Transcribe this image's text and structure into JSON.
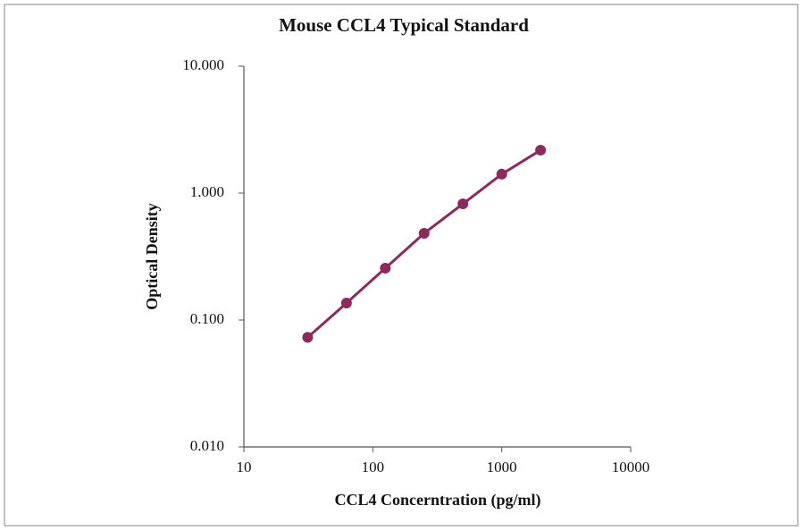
{
  "chart_data": {
    "type": "line",
    "title": "Mouse CCL4 Typical Standard",
    "x_label": "CCL4 Concerntration (pg/ml)",
    "y_label": "Optical Density",
    "x": [
      31.25,
      62.5,
      125,
      250,
      500,
      1000,
      2000
    ],
    "series": [
      {
        "color": "#8c2a5c",
        "values": [
          0.073,
          0.136,
          0.256,
          0.482,
          0.823,
          1.41,
          2.18
        ]
      }
    ],
    "xlim": [
      10,
      10000
    ],
    "xticks": [
      10,
      100,
      1000,
      10000
    ],
    "ylim": [
      0.01,
      10
    ],
    "yticks": [
      {
        "value": 0.01,
        "label": "0.010"
      },
      {
        "value": 0.1,
        "label": "0.100"
      },
      {
        "value": 1,
        "label": "1.000"
      },
      {
        "value": 10,
        "label": "10.000"
      }
    ],
    "x_log": true,
    "y_log": true,
    "grid": false
  }
}
